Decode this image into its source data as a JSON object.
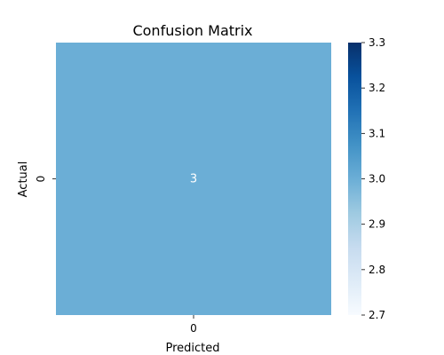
{
  "chart_data": {
    "type": "heatmap",
    "title": "Confusion Matrix",
    "xlabel": "Predicted",
    "ylabel": "Actual",
    "x_categories": [
      "0"
    ],
    "y_categories": [
      "0"
    ],
    "values": [
      [
        3
      ]
    ],
    "cell_labels": [
      [
        "3"
      ]
    ],
    "colorbar": {
      "vmin": 2.7,
      "vmax": 3.3,
      "ticks": [
        "2.7",
        "2.8",
        "2.9",
        "3.0",
        "3.1",
        "3.2",
        "3.3"
      ],
      "colormap": "Blues"
    },
    "cell_label_color": "#ffffff"
  }
}
